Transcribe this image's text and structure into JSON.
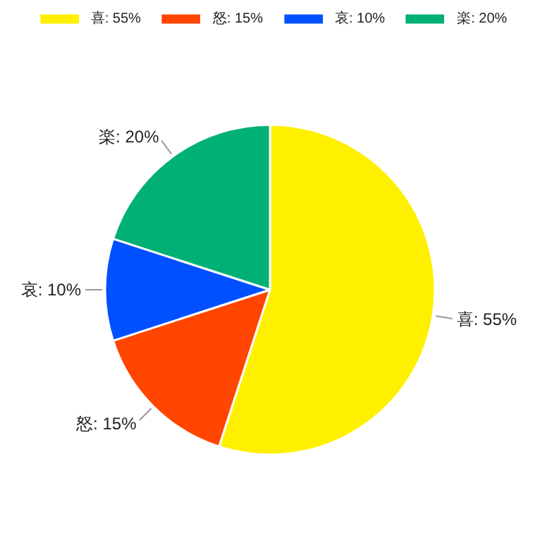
{
  "chart_data": {
    "type": "pie",
    "categories": [
      "喜: 55%",
      "怒: 15%",
      "哀: 10%",
      "楽: 20%"
    ],
    "values": [
      55,
      15,
      10,
      20
    ],
    "colors": [
      "#fff000",
      "#ff4500",
      "#0050ff",
      "#00b075"
    ],
    "legend": "top"
  }
}
